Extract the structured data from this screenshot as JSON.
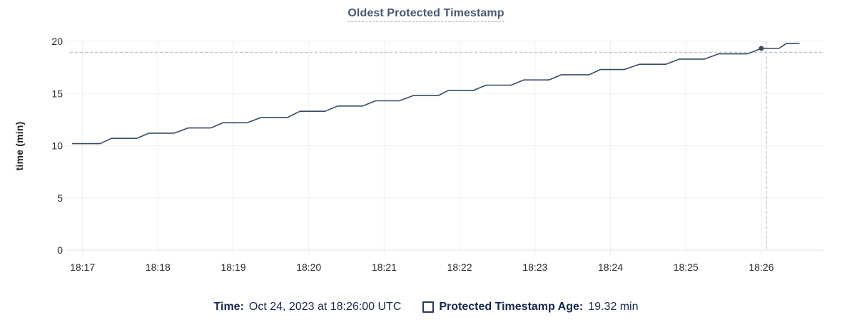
{
  "header": {
    "title": "Oldest Protected Timestamp"
  },
  "legend": {
    "time_label": "Time:",
    "time_value": "Oct 24, 2023 at 18:26:00 UTC",
    "series_label": "Protected Timestamp Age:",
    "series_value": "19.32 min",
    "series_marker": "hollow-square"
  },
  "chart_data": {
    "type": "line",
    "title": "Oldest Protected Timestamp",
    "xlabel": "",
    "ylabel": "time (min)",
    "x_ticks": [
      "18:17",
      "18:18",
      "18:19",
      "18:20",
      "18:21",
      "18:22",
      "18:23",
      "18:24",
      "18:25",
      "18:26"
    ],
    "y_ticks": [
      0,
      5,
      10,
      15,
      20
    ],
    "ylim": [
      0,
      20
    ],
    "x_domain": [
      "18:16:50",
      "18:26:50"
    ],
    "grid": true,
    "legend_position": "bottom",
    "series": [
      {
        "name": "Protected Timestamp Age",
        "unit": "min",
        "points": [
          [
            "18:16:52",
            10.2
          ],
          [
            "18:17:14",
            10.2
          ],
          [
            "18:17:23",
            10.7
          ],
          [
            "18:17:43",
            10.7
          ],
          [
            "18:17:53",
            11.2
          ],
          [
            "18:18:13",
            11.2
          ],
          [
            "18:18:24",
            11.7
          ],
          [
            "18:18:42",
            11.7
          ],
          [
            "18:18:52",
            12.2
          ],
          [
            "18:19:11",
            12.2
          ],
          [
            "18:19:22",
            12.7
          ],
          [
            "18:19:43",
            12.7
          ],
          [
            "18:19:53",
            13.3
          ],
          [
            "18:20:13",
            13.3
          ],
          [
            "18:20:23",
            13.8
          ],
          [
            "18:20:43",
            13.8
          ],
          [
            "18:20:53",
            14.3
          ],
          [
            "18:21:12",
            14.3
          ],
          [
            "18:21:23",
            14.8
          ],
          [
            "18:21:43",
            14.8
          ],
          [
            "18:21:51",
            15.3
          ],
          [
            "18:22:11",
            15.3
          ],
          [
            "18:22:21",
            15.8
          ],
          [
            "18:22:41",
            15.8
          ],
          [
            "18:22:51",
            16.3
          ],
          [
            "18:23:11",
            16.3
          ],
          [
            "18:23:21",
            16.8
          ],
          [
            "18:23:43",
            16.8
          ],
          [
            "18:23:52",
            17.3
          ],
          [
            "18:24:11",
            17.3
          ],
          [
            "18:24:23",
            17.8
          ],
          [
            "18:24:44",
            17.8
          ],
          [
            "18:24:55",
            18.3
          ],
          [
            "18:25:15",
            18.3
          ],
          [
            "18:25:26",
            18.8
          ],
          [
            "18:25:49",
            18.8
          ],
          [
            "18:26:00",
            19.32
          ],
          [
            "18:26:14",
            19.32
          ],
          [
            "18:26:20",
            19.8
          ],
          [
            "18:26:30",
            19.8
          ]
        ]
      }
    ],
    "hover": {
      "cursor_time": "18:26:04",
      "cursor_value": 18.95,
      "point_time": "18:26:00",
      "point_value": 19.32,
      "tooltip_time": "Oct 24, 2023 at 18:26:00 UTC"
    },
    "colors": {
      "line": "#394a63",
      "grid": "#efefef",
      "axis": "#e3e3e3",
      "crosshair": "#a3b8c4",
      "tick_text": "#2b2b2b",
      "title_text": "#475872",
      "legend_text": "#16294d"
    }
  }
}
